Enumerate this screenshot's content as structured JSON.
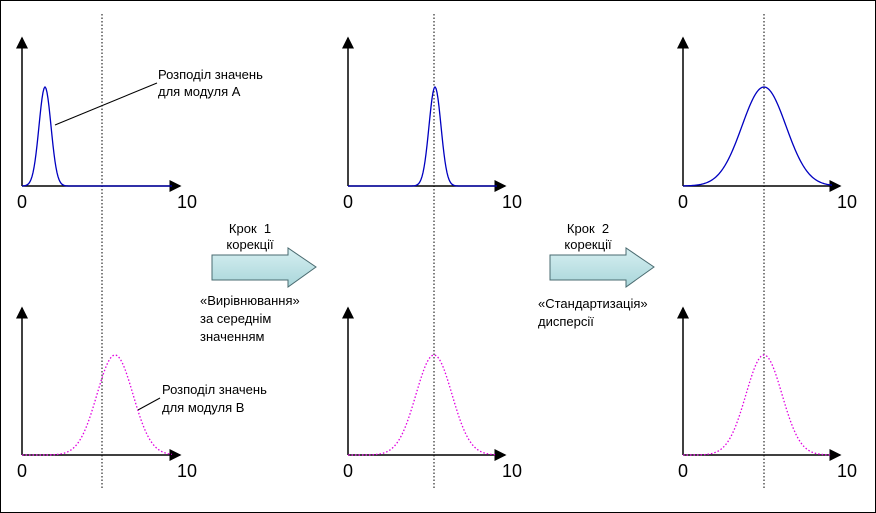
{
  "panels": [
    {
      "x_min": "0",
      "x_max": "10"
    },
    {
      "x_min": "0",
      "x_max": "10"
    },
    {
      "x_min": "0",
      "x_max": "10"
    },
    {
      "x_min": "0",
      "x_max": "10"
    },
    {
      "x_min": "0",
      "x_max": "10"
    },
    {
      "x_min": "0",
      "x_max": "10"
    }
  ],
  "annotations": [
    {
      "lines": [
        "Розподіл значень",
        "для модуля А"
      ]
    },
    {
      "lines": [
        "Розподіл значень",
        "для модуля В"
      ]
    }
  ],
  "steps": [
    {
      "title": [
        "Крок  1",
        "корекції"
      ],
      "description": [
        "«Вирівнювання»",
        "за середнім",
        "значенням"
      ]
    },
    {
      "title": [
        "Крок  2",
        "корекції"
      ],
      "description": [
        "«Стандартизація»",
        "дисперсії"
      ]
    }
  ]
}
